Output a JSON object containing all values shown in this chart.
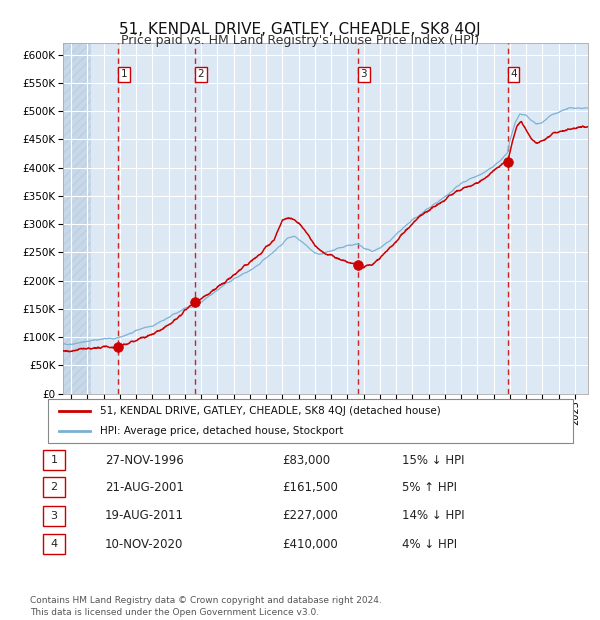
{
  "title": "51, KENDAL DRIVE, GATLEY, CHEADLE, SK8 4QJ",
  "subtitle": "Price paid vs. HM Land Registry's House Price Index (HPI)",
  "ylim": [
    0,
    620000
  ],
  "yticks": [
    0,
    50000,
    100000,
    150000,
    200000,
    250000,
    300000,
    350000,
    400000,
    450000,
    500000,
    550000,
    600000
  ],
  "xlim_start": 1993.5,
  "xlim_end": 2025.8,
  "background_color": "#dce9f5",
  "grid_color": "#ffffff",
  "red_line_color": "#cc0000",
  "blue_line_color": "#7ab0d4",
  "sale_marker_color": "#cc0000",
  "vline_color": "#cc0000",
  "title_fontsize": 11,
  "subtitle_fontsize": 9,
  "legend_label_red": "51, KENDAL DRIVE, GATLEY, CHEADLE, SK8 4QJ (detached house)",
  "legend_label_blue": "HPI: Average price, detached house, Stockport",
  "footnote": "Contains HM Land Registry data © Crown copyright and database right 2024.\nThis data is licensed under the Open Government Licence v3.0.",
  "sales": [
    {
      "num": 1,
      "date_label": "27-NOV-1996",
      "price": 83000,
      "year": 1996.91,
      "hpi_pct": "15% ↓ HPI"
    },
    {
      "num": 2,
      "date_label": "21-AUG-2001",
      "price": 161500,
      "year": 2001.64,
      "hpi_pct": "5% ↑ HPI"
    },
    {
      "num": 3,
      "date_label": "19-AUG-2011",
      "price": 227000,
      "year": 2011.64,
      "hpi_pct": "14% ↓ HPI"
    },
    {
      "num": 4,
      "date_label": "10-NOV-2020",
      "price": 410000,
      "year": 2020.86,
      "hpi_pct": "4% ↓ HPI"
    }
  ],
  "table_rows": [
    {
      "num": 1,
      "date": "27-NOV-1996",
      "price": "£83,000",
      "hpi": "15% ↓ HPI"
    },
    {
      "num": 2,
      "date": "21-AUG-2001",
      "price": "£161,500",
      "hpi": "5% ↑ HPI"
    },
    {
      "num": 3,
      "date": "19-AUG-2011",
      "price": "£227,000",
      "hpi": "14% ↓ HPI"
    },
    {
      "num": 4,
      "date": "10-NOV-2020",
      "price": "£410,000",
      "hpi": "4% ↓ HPI"
    }
  ],
  "hpi_years": [
    1994.0,
    1994.5,
    1995.0,
    1995.5,
    1996.0,
    1996.5,
    1996.91,
    1997.0,
    1997.5,
    1998.0,
    1998.5,
    1999.0,
    1999.5,
    2000.0,
    2000.5,
    2001.0,
    2001.64,
    2002.0,
    2002.5,
    2003.0,
    2003.5,
    2004.0,
    2004.5,
    2005.0,
    2005.5,
    2006.0,
    2006.5,
    2007.0,
    2007.3,
    2007.7,
    2008.0,
    2008.5,
    2009.0,
    2009.5,
    2010.0,
    2010.5,
    2011.0,
    2011.64,
    2012.0,
    2012.5,
    2013.0,
    2013.5,
    2014.0,
    2014.5,
    2015.0,
    2015.5,
    2016.0,
    2016.5,
    2017.0,
    2017.5,
    2018.0,
    2018.5,
    2019.0,
    2019.5,
    2020.0,
    2020.5,
    2020.86,
    2021.0,
    2021.3,
    2021.6,
    2022.0,
    2022.3,
    2022.6,
    2023.0,
    2023.3,
    2023.6,
    2024.0,
    2024.3,
    2024.6,
    2025.0,
    2025.5
  ],
  "hpi_vals": [
    88000,
    90000,
    93000,
    95000,
    97000,
    97500,
    97800,
    100000,
    105000,
    112000,
    116000,
    120000,
    127000,
    135000,
    143000,
    152000,
    154000,
    163000,
    173000,
    183000,
    194000,
    203000,
    211000,
    218000,
    228000,
    240000,
    252000,
    265000,
    275000,
    278000,
    272000,
    262000,
    248000,
    248000,
    252000,
    258000,
    262000,
    264000,
    258000,
    252000,
    258000,
    268000,
    282000,
    295000,
    308000,
    318000,
    328000,
    338000,
    348000,
    360000,
    372000,
    380000,
    386000,
    393000,
    402000,
    415000,
    427000,
    448000,
    478000,
    495000,
    492000,
    485000,
    478000,
    480000,
    488000,
    494000,
    498000,
    502000,
    506000,
    505000,
    505000
  ],
  "red_years": [
    1994.0,
    1994.5,
    1995.0,
    1995.5,
    1996.0,
    1996.5,
    1996.91,
    1997.5,
    1998.5,
    1999.5,
    2000.5,
    2001.0,
    2001.64,
    2002.5,
    2003.5,
    2004.5,
    2005.5,
    2006.5,
    2007.0,
    2007.4,
    2007.8,
    2008.2,
    2008.6,
    2009.0,
    2009.3,
    2009.6,
    2010.0,
    2010.5,
    2011.0,
    2011.64,
    2012.0,
    2012.5,
    2013.0,
    2013.5,
    2014.0,
    2014.5,
    2015.0,
    2015.5,
    2016.0,
    2016.5,
    2017.0,
    2017.5,
    2018.0,
    2018.5,
    2019.0,
    2019.5,
    2020.0,
    2020.5,
    2020.86,
    2021.1,
    2021.4,
    2021.7,
    2022.0,
    2022.3,
    2022.6,
    2023.0,
    2023.4,
    2023.8,
    2024.2,
    2024.6,
    2025.0,
    2025.5
  ],
  "red_vals": [
    76000,
    78000,
    80000,
    81000,
    82000,
    82500,
    83000,
    90000,
    100000,
    112000,
    132000,
    148000,
    161500,
    178000,
    198000,
    222000,
    244000,
    272000,
    308000,
    312000,
    308000,
    295000,
    280000,
    262000,
    255000,
    248000,
    245000,
    238000,
    232000,
    227000,
    224000,
    228000,
    240000,
    255000,
    270000,
    287000,
    300000,
    315000,
    324000,
    334000,
    344000,
    355000,
    362000,
    368000,
    374000,
    382000,
    395000,
    406000,
    410000,
    440000,
    472000,
    482000,
    465000,
    452000,
    443000,
    448000,
    455000,
    462000,
    465000,
    468000,
    470000,
    472000
  ]
}
